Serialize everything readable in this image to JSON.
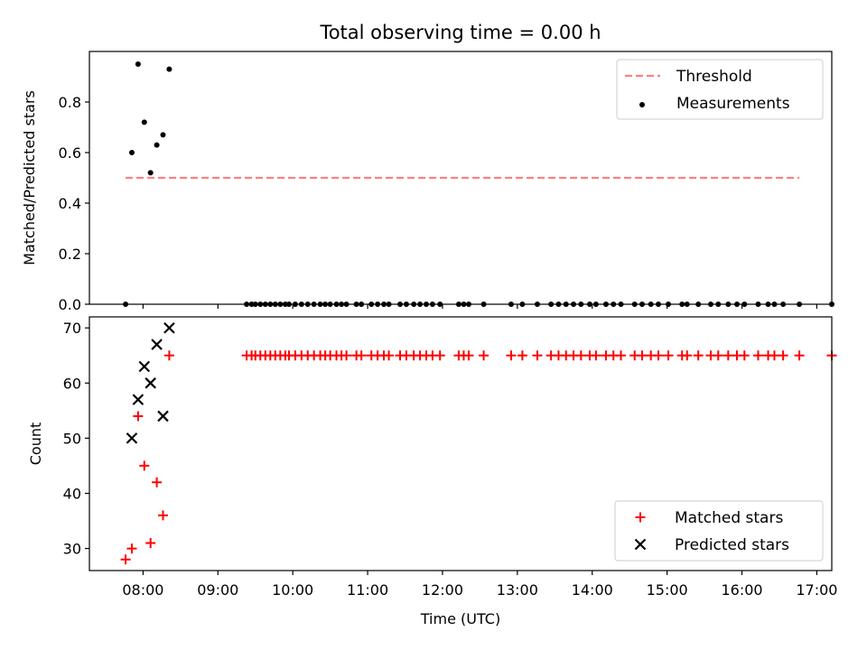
{
  "figure": {
    "title": "Total observing time = 0.00 h"
  },
  "chart_data": [
    {
      "type": "scatter",
      "panel": "top",
      "title": "Total observing time = 0.00 h",
      "xlabel": "",
      "ylabel": "Matched/Predicted stars",
      "xlim": [
        "07:17",
        "17:12"
      ],
      "ylim": [
        0,
        1.0
      ],
      "yticks": [
        0.0,
        0.2,
        0.4,
        0.6,
        0.8
      ],
      "xticks": [
        "08:00",
        "09:00",
        "10:00",
        "11:00",
        "12:00",
        "13:00",
        "14:00",
        "15:00",
        "16:00",
        "17:00"
      ],
      "show_xticklabels": false,
      "legend": {
        "position": "top-right",
        "entries": [
          "Threshold",
          "Measurements"
        ]
      },
      "colors": {
        "threshold": "#ff7f7f",
        "measurements": "#000000"
      },
      "series": [
        {
          "name": "Threshold",
          "kind": "dashed-line",
          "x": [
            "07:46",
            "16:46"
          ],
          "y": [
            0.5,
            0.5
          ]
        },
        {
          "name": "Measurements",
          "kind": "dots",
          "points": [
            [
              "07:46",
              0.0
            ],
            [
              "07:51",
              0.6
            ],
            [
              "07:56",
              0.95
            ],
            [
              "08:01",
              0.72
            ],
            [
              "08:06",
              0.52
            ],
            [
              "08:11",
              0.63
            ],
            [
              "08:16",
              0.67
            ],
            [
              "08:21",
              0.93
            ],
            [
              "09:23",
              0.0
            ],
            [
              "09:27",
              0.0
            ],
            [
              "09:30",
              0.0
            ],
            [
              "09:34",
              0.0
            ],
            [
              "09:38",
              0.0
            ],
            [
              "09:42",
              0.0
            ],
            [
              "09:46",
              0.0
            ],
            [
              "09:50",
              0.0
            ],
            [
              "09:54",
              0.0
            ],
            [
              "09:57",
              0.0
            ],
            [
              "10:02",
              0.0
            ],
            [
              "10:07",
              0.0
            ],
            [
              "10:12",
              0.0
            ],
            [
              "10:17",
              0.0
            ],
            [
              "10:22",
              0.0
            ],
            [
              "10:26",
              0.0
            ],
            [
              "10:30",
              0.0
            ],
            [
              "10:35",
              0.0
            ],
            [
              "10:39",
              0.0
            ],
            [
              "10:43",
              0.0
            ],
            [
              "10:51",
              0.0
            ],
            [
              "10:55",
              0.0
            ],
            [
              "11:03",
              0.0
            ],
            [
              "11:08",
              0.0
            ],
            [
              "11:13",
              0.0
            ],
            [
              "11:17",
              0.0
            ],
            [
              "11:26",
              0.0
            ],
            [
              "11:31",
              0.0
            ],
            [
              "11:37",
              0.0
            ],
            [
              "11:42",
              0.0
            ],
            [
              "11:47",
              0.0
            ],
            [
              "11:52",
              0.0
            ],
            [
              "11:58",
              0.0
            ],
            [
              "12:13",
              0.0
            ],
            [
              "12:17",
              0.0
            ],
            [
              "12:21",
              0.0
            ],
            [
              "12:33",
              0.0
            ],
            [
              "12:55",
              0.0
            ],
            [
              "13:04",
              0.0
            ],
            [
              "13:16",
              0.0
            ],
            [
              "13:27",
              0.0
            ],
            [
              "13:33",
              0.0
            ],
            [
              "13:39",
              0.0
            ],
            [
              "13:45",
              0.0
            ],
            [
              "13:51",
              0.0
            ],
            [
              "13:58",
              0.0
            ],
            [
              "14:03",
              0.0
            ],
            [
              "14:11",
              0.0
            ],
            [
              "14:17",
              0.0
            ],
            [
              "14:23",
              0.0
            ],
            [
              "14:34",
              0.0
            ],
            [
              "14:40",
              0.0
            ],
            [
              "14:47",
              0.0
            ],
            [
              "14:53",
              0.0
            ],
            [
              "15:01",
              0.0
            ],
            [
              "15:12",
              0.0
            ],
            [
              "15:16",
              0.0
            ],
            [
              "15:25",
              0.0
            ],
            [
              "15:35",
              0.0
            ],
            [
              "15:41",
              0.0
            ],
            [
              "15:49",
              0.0
            ],
            [
              "15:56",
              0.0
            ],
            [
              "16:02",
              0.0
            ],
            [
              "16:13",
              0.0
            ],
            [
              "16:21",
              0.0
            ],
            [
              "16:26",
              0.0
            ],
            [
              "16:33",
              0.0
            ],
            [
              "16:46",
              0.0
            ],
            [
              "17:12",
              0.0
            ]
          ]
        }
      ]
    },
    {
      "type": "scatter",
      "panel": "bottom",
      "title": "",
      "xlabel": "Time (UTC)",
      "ylabel": "Count",
      "xlim": [
        "07:17",
        "17:12"
      ],
      "ylim": [
        26,
        72
      ],
      "yticks": [
        30,
        40,
        50,
        60,
        70
      ],
      "xticks": [
        "08:00",
        "09:00",
        "10:00",
        "11:00",
        "12:00",
        "13:00",
        "14:00",
        "15:00",
        "16:00",
        "17:00"
      ],
      "show_xticklabels": true,
      "legend": {
        "position": "bottom-right",
        "entries": [
          "Matched stars",
          "Predicted stars"
        ]
      },
      "colors": {
        "matched": "#ff0000",
        "predicted": "#000000"
      },
      "series": [
        {
          "name": "Matched stars",
          "marker": "plus",
          "points": [
            [
              "07:46",
              28
            ],
            [
              "07:51",
              30
            ],
            [
              "07:56",
              54
            ],
            [
              "08:01",
              45
            ],
            [
              "08:06",
              31
            ],
            [
              "08:11",
              42
            ],
            [
              "08:16",
              36
            ],
            [
              "08:21",
              65
            ],
            [
              "09:23",
              65
            ],
            [
              "09:27",
              65
            ],
            [
              "09:30",
              65
            ],
            [
              "09:34",
              65
            ],
            [
              "09:38",
              65
            ],
            [
              "09:42",
              65
            ],
            [
              "09:46",
              65
            ],
            [
              "09:50",
              65
            ],
            [
              "09:54",
              65
            ],
            [
              "09:57",
              65
            ],
            [
              "10:02",
              65
            ],
            [
              "10:07",
              65
            ],
            [
              "10:12",
              65
            ],
            [
              "10:17",
              65
            ],
            [
              "10:22",
              65
            ],
            [
              "10:26",
              65
            ],
            [
              "10:30",
              65
            ],
            [
              "10:35",
              65
            ],
            [
              "10:39",
              65
            ],
            [
              "10:43",
              65
            ],
            [
              "10:51",
              65
            ],
            [
              "10:55",
              65
            ],
            [
              "11:03",
              65
            ],
            [
              "11:08",
              65
            ],
            [
              "11:13",
              65
            ],
            [
              "11:17",
              65
            ],
            [
              "11:26",
              65
            ],
            [
              "11:31",
              65
            ],
            [
              "11:37",
              65
            ],
            [
              "11:42",
              65
            ],
            [
              "11:47",
              65
            ],
            [
              "11:52",
              65
            ],
            [
              "11:58",
              65
            ],
            [
              "12:13",
              65
            ],
            [
              "12:17",
              65
            ],
            [
              "12:21",
              65
            ],
            [
              "12:33",
              65
            ],
            [
              "12:55",
              65
            ],
            [
              "13:04",
              65
            ],
            [
              "13:16",
              65
            ],
            [
              "13:27",
              65
            ],
            [
              "13:33",
              65
            ],
            [
              "13:39",
              65
            ],
            [
              "13:45",
              65
            ],
            [
              "13:51",
              65
            ],
            [
              "13:58",
              65
            ],
            [
              "14:03",
              65
            ],
            [
              "14:11",
              65
            ],
            [
              "14:17",
              65
            ],
            [
              "14:23",
              65
            ],
            [
              "14:34",
              65
            ],
            [
              "14:40",
              65
            ],
            [
              "14:47",
              65
            ],
            [
              "14:53",
              65
            ],
            [
              "15:01",
              65
            ],
            [
              "15:12",
              65
            ],
            [
              "15:16",
              65
            ],
            [
              "15:25",
              65
            ],
            [
              "15:35",
              65
            ],
            [
              "15:41",
              65
            ],
            [
              "15:49",
              65
            ],
            [
              "15:56",
              65
            ],
            [
              "16:02",
              65
            ],
            [
              "16:13",
              65
            ],
            [
              "16:21",
              65
            ],
            [
              "16:26",
              65
            ],
            [
              "16:33",
              65
            ],
            [
              "16:46",
              65
            ],
            [
              "17:12",
              65
            ]
          ]
        },
        {
          "name": "Predicted stars",
          "marker": "x",
          "points": [
            [
              "07:51",
              50
            ],
            [
              "07:56",
              57
            ],
            [
              "08:01",
              63
            ],
            [
              "08:06",
              60
            ],
            [
              "08:11",
              67
            ],
            [
              "08:16",
              54
            ],
            [
              "08:21",
              70
            ]
          ]
        }
      ]
    }
  ]
}
